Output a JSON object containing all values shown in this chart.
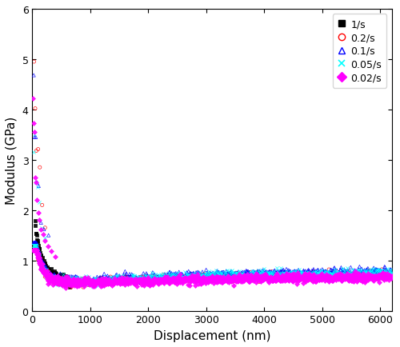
{
  "xlabel": "Displacement (nm)",
  "ylabel": "Modulus (GPa)",
  "xlim": [
    0,
    6200
  ],
  "ylim": [
    0,
    6
  ],
  "yticks": [
    0,
    1,
    2,
    3,
    4,
    5,
    6
  ],
  "xticks": [
    0,
    1000,
    2000,
    3000,
    4000,
    5000,
    6000
  ],
  "series": [
    {
      "label": "1/s",
      "color": "black",
      "marker": "s",
      "mfc": "black",
      "mec": "black",
      "markersize": 3
    },
    {
      "label": "0.2/s",
      "color": "red",
      "marker": "o",
      "mfc": "none",
      "mec": "red",
      "markersize": 3
    },
    {
      "label": "0.1/s",
      "color": "blue",
      "marker": "^",
      "mfc": "none",
      "mec": "blue",
      "markersize": 3
    },
    {
      "label": "0.05/s",
      "color": "cyan",
      "marker": "x",
      "mfc": "cyan",
      "mec": "cyan",
      "markersize": 3
    },
    {
      "label": "0.02/s",
      "color": "magenta",
      "marker": "D",
      "mfc": "magenta",
      "mec": "magenta",
      "markersize": 3
    }
  ],
  "legend_loc": "upper right",
  "figsize": [
    5.0,
    4.35
  ],
  "dpi": 100
}
